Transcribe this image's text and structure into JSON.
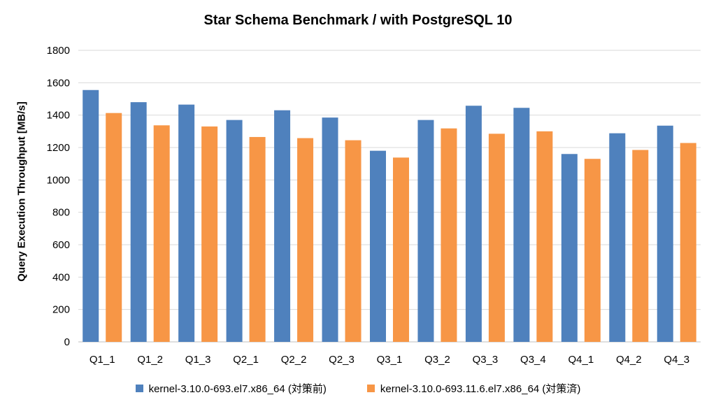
{
  "chart_data": {
    "type": "bar",
    "title": "Star Schema Benchmark / with PostgreSQL 10",
    "xlabel": "",
    "ylabel": "Query Execution Throughput  [MB/s]",
    "ylim": [
      0,
      1800
    ],
    "yticks": [
      0,
      200,
      400,
      600,
      800,
      1000,
      1200,
      1400,
      1600,
      1800
    ],
    "grid": true,
    "legend_position": "bottom",
    "categories": [
      "Q1_1",
      "Q1_2",
      "Q1_3",
      "Q2_1",
      "Q2_2",
      "Q2_3",
      "Q3_1",
      "Q3_2",
      "Q3_3",
      "Q3_4",
      "Q4_1",
      "Q4_2",
      "Q4_3"
    ],
    "series": [
      {
        "name": "kernel-3.10.0-693.el7.x86_64 (対策前)",
        "color": "#4f81bd",
        "values": [
          1555,
          1480,
          1465,
          1370,
          1430,
          1385,
          1180,
          1370,
          1458,
          1445,
          1160,
          1288,
          1335
        ]
      },
      {
        "name": "kernel-3.10.0-693.11.6.el7.x86_64 (対策済)",
        "color": "#f79646",
        "values": [
          1413,
          1337,
          1330,
          1265,
          1258,
          1245,
          1138,
          1318,
          1285,
          1300,
          1130,
          1185,
          1228
        ]
      }
    ]
  },
  "colors": {
    "gridline": "#d9d9d9",
    "axis": "#bfbfbf"
  }
}
